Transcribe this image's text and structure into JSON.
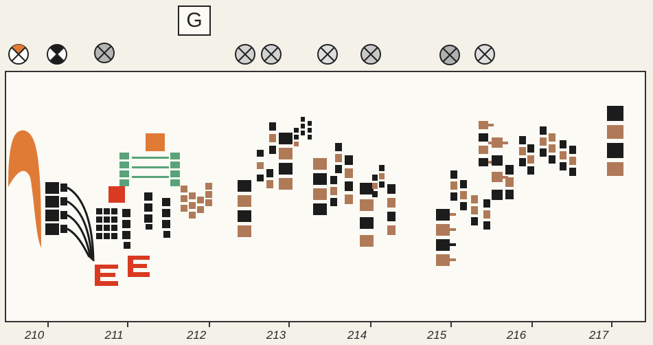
{
  "rehearsal_mark": "G",
  "timeline": {
    "labels": [
      "210",
      "211",
      "212",
      "213",
      "214",
      "215",
      "216",
      "217"
    ]
  },
  "colors": {
    "black": "#1c1c1c",
    "brown": "#b07a58",
    "orange": "#e07b36",
    "red": "#d83a22",
    "green": "#5aa37a",
    "frame": "#333333",
    "paper": "#fbfaf4"
  },
  "symbols": [
    "orange-x-circle-icon",
    "black-x-circle-icon",
    "gray-x-circle-icon",
    "gray-x-circle-icon",
    "gray-x-circle-icon",
    "gray-x-circle-icon",
    "gray-x-circle-icon",
    "gray-x-circle-icon",
    "gray-x-circle-icon"
  ]
}
